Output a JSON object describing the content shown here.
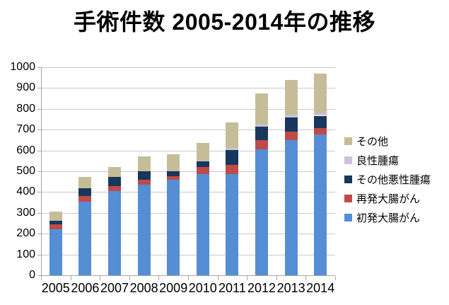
{
  "title": "手術件数 2005-2014年の推移",
  "colors": {
    "primary_blue": "#558ED5",
    "recurrent_red": "#BE4B48",
    "other_malignant_navy": "#17375D",
    "benign_lavender": "#CCC1DA",
    "other_tan": "#C4BD97"
  },
  "y_axis": {
    "tick_labels": [
      "0",
      "100",
      "200",
      "300",
      "400",
      "500",
      "600",
      "700",
      "800",
      "900",
      "1000"
    ]
  },
  "x_axis": {
    "tick_labels": [
      "2005",
      "2006",
      "2007",
      "2008",
      "2009",
      "2010",
      "2011",
      "2012",
      "2013",
      "2014"
    ]
  },
  "legend": {
    "items_top_to_bottom": [
      "その他",
      "良性腫瘍",
      "その他悪性腫瘍",
      "再発大腸がん",
      "初発大腸がん"
    ]
  },
  "chart_data": {
    "type": "bar",
    "stacked": true,
    "title": "手術件数 2005-2014年の推移",
    "xlabel": "",
    "ylabel": "",
    "ylim": [
      0,
      1000
    ],
    "ytick_step": 100,
    "grid": true,
    "legend_position": "right",
    "categories": [
      "2005",
      "2006",
      "2007",
      "2008",
      "2009",
      "2010",
      "2011",
      "2012",
      "2013",
      "2014"
    ],
    "series": [
      {
        "name": "初発大腸がん",
        "color_key": "primary_blue",
        "values": [
          222,
          355,
          405,
          435,
          458,
          485,
          488,
          605,
          650,
          677
        ]
      },
      {
        "name": "再発大腸がん",
        "color_key": "recurrent_red",
        "values": [
          24,
          27,
          25,
          23,
          18,
          34,
          43,
          43,
          42,
          30
        ]
      },
      {
        "name": "その他悪性腫瘍",
        "color_key": "other_malignant_navy",
        "values": [
          17,
          38,
          42,
          42,
          25,
          28,
          72,
          66,
          65,
          60
        ]
      },
      {
        "name": "良性腫瘍",
        "color_key": "benign_lavender",
        "values": [
          0,
          0,
          0,
          0,
          0,
          4,
          9,
          10,
          14,
          11
        ]
      },
      {
        "name": "その他",
        "color_key": "other_tan",
        "values": [
          43,
          52,
          48,
          70,
          79,
          84,
          123,
          151,
          169,
          192
        ]
      }
    ],
    "totals": [
      306,
      472,
      520,
      570,
      580,
      635,
      735,
      875,
      940,
      970
    ]
  }
}
